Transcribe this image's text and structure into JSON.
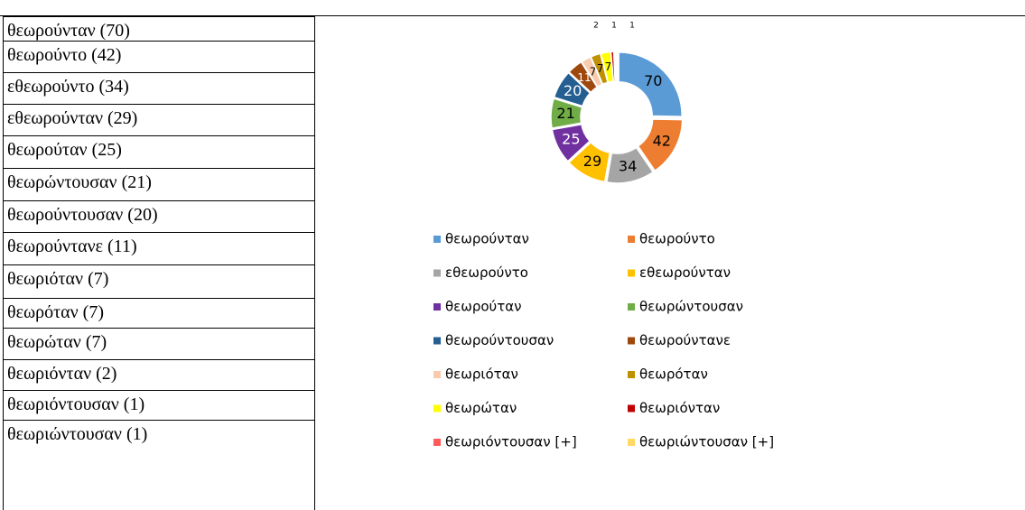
{
  "table": {
    "rows": [
      "θεωρούνταν (70)",
      "θεωρούντο (42)",
      "εθεωρούντο (34)",
      "εθεωρούνταν (29)",
      "θεωρούταν (25)",
      "θεωρώντουσαν (21)",
      "θεωρούντουσαν (20)",
      "θεωρούντανε (11)",
      "θεωριόταν (7)",
      "θεωρόταν (7)",
      "θεωρώταν (7)",
      "θεωριόνταν (2)",
      "θεωριόντουσαν (1)",
      "θεωριώντουσαν (1)"
    ]
  },
  "chart_data": {
    "type": "donut",
    "categories": [
      "θεωρούνταν",
      "θεωρούντο",
      "εθεωρούντο",
      "εθεωρούνταν",
      "θεωρούταν",
      "θεωρώντουσαν",
      "θεωρούντουσαν",
      "θεωρούντανε",
      "θεωριόταν",
      "θεωρόταν",
      "θεωρώταν",
      "θεωριόνταν",
      "θεωριόντουσαν [+]",
      "θεωριώντουσαν [+]"
    ],
    "values": [
      70,
      42,
      34,
      29,
      25,
      21,
      20,
      11,
      7,
      7,
      7,
      2,
      1,
      1
    ],
    "colors": [
      "#5b9bd5",
      "#ed7d31",
      "#a5a5a5",
      "#ffc000",
      "#7030a0",
      "#70ad47",
      "#255e91",
      "#9e480e",
      "#f8cbad",
      "#bf9000",
      "#ffff00",
      "#c00000",
      "#ff5b5b",
      "#ffd966"
    ],
    "legend": "bottom"
  }
}
